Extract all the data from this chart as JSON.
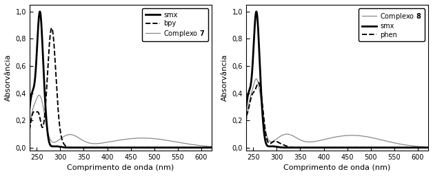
{
  "xlim": [
    235,
    622
  ],
  "ylim": [
    -0.02,
    1.05
  ],
  "yticks": [
    0.0,
    0.2,
    0.4,
    0.6,
    0.8,
    1.0
  ],
  "ytick_labels": [
    "0,0",
    "0,2",
    "0,4",
    "0,6",
    "0,8",
    "1,0"
  ],
  "xticks": [
    250,
    300,
    350,
    400,
    450,
    500,
    550,
    600
  ],
  "xlabel": "Comprimento de onda (nm)",
  "ylabel": "Absorvância",
  "left_legend": [
    "smx",
    "bpy",
    "Complexo 7"
  ],
  "right_legend": [
    "Complexo 8",
    "smx",
    "phen"
  ],
  "background": "#ffffff",
  "figsize": [
    6.28,
    2.56
  ],
  "dpi": 100
}
